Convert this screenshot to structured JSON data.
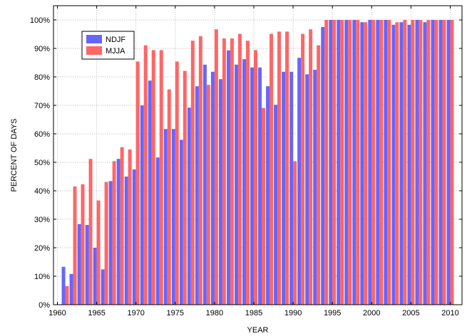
{
  "chart_data": {
    "type": "bar",
    "title": "",
    "xlabel": "YEAR",
    "ylabel": "PERCENT OF DAYS",
    "ylim": [
      0,
      105
    ],
    "xlim": [
      1959.5,
      2011.5
    ],
    "grid": true,
    "legend_position": "top-left",
    "yticks": [
      0,
      10,
      20,
      30,
      40,
      50,
      60,
      70,
      80,
      90,
      100
    ],
    "ytick_labels": [
      "0%",
      "10%",
      "20%",
      "30%",
      "40%",
      "50%",
      "60%",
      "70%",
      "80%",
      "90%",
      "100%"
    ],
    "xticks": [
      1960,
      1965,
      1970,
      1975,
      1980,
      1985,
      1990,
      1995,
      2000,
      2005,
      2010
    ],
    "xtick_labels": [
      "1960",
      "1965",
      "1970",
      "1975",
      "1980",
      "1985",
      "1990",
      "1995",
      "2000",
      "2005",
      "2010"
    ],
    "categories": [
      1961,
      1962,
      1963,
      1964,
      1965,
      1966,
      1967,
      1968,
      1969,
      1970,
      1971,
      1972,
      1973,
      1974,
      1975,
      1976,
      1977,
      1978,
      1979,
      1980,
      1981,
      1982,
      1983,
      1984,
      1985,
      1986,
      1987,
      1988,
      1989,
      1990,
      1991,
      1992,
      1993,
      1994,
      1995,
      1996,
      1997,
      1998,
      1999,
      2000,
      2001,
      2002,
      2003,
      2004,
      2005,
      2006,
      2007,
      2008,
      2009,
      2010
    ],
    "series": [
      {
        "name": "NDJF",
        "color": "#6666ff",
        "values": [
          13.3,
          10.8,
          28.3,
          28.0,
          20.0,
          12.4,
          43.4,
          51.2,
          45.0,
          47.5,
          70.0,
          78.7,
          51.7,
          61.7,
          61.7,
          57.9,
          69.2,
          76.7,
          84.3,
          81.8,
          79.2,
          89.3,
          84.3,
          86.2,
          83.3,
          83.3,
          76.7,
          70.2,
          81.8,
          81.8,
          86.7,
          80.9,
          82.5,
          97.5,
          100,
          100,
          100,
          100,
          99.2,
          100,
          100,
          100,
          98.3,
          99.2,
          98.3,
          100,
          99.2,
          100,
          100,
          100
        ]
      },
      {
        "name": "MJJA",
        "color": "#ff6666",
        "values": [
          6.5,
          41.5,
          42.3,
          51.2,
          36.6,
          43.1,
          50.4,
          55.3,
          54.5,
          85.4,
          91.1,
          89.4,
          89.4,
          75.6,
          85.4,
          82.1,
          92.7,
          94.3,
          77.2,
          96.7,
          93.5,
          93.5,
          95.1,
          92.7,
          89.4,
          69.1,
          95.1,
          95.9,
          95.9,
          50.4,
          95.1,
          96.7,
          91.1,
          100,
          100,
          100,
          100,
          100,
          99.2,
          100,
          100,
          100,
          99.2,
          100,
          100,
          100,
          100,
          100,
          100,
          100
        ]
      }
    ]
  }
}
